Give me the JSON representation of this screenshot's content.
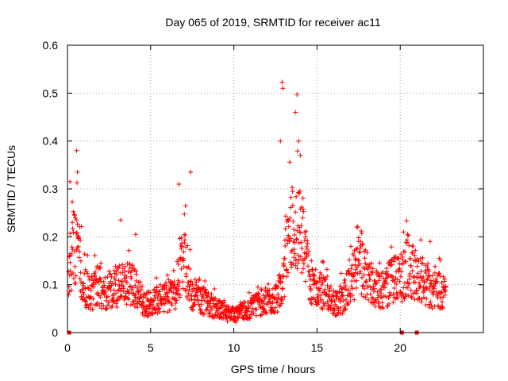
{
  "chart_data": {
    "type": "scatter",
    "title": "Day 065 of 2019, SRMTID for receiver ac11",
    "xlabel": "GPS time / hours",
    "ylabel": "SRMTID / TECUs",
    "xlim": [
      0,
      25
    ],
    "ylim": [
      0,
      0.6
    ],
    "x_ticks": [
      0,
      5,
      10,
      15,
      20
    ],
    "x_tick_labels": [
      "0",
      "5",
      "10",
      "15",
      "20"
    ],
    "y_ticks": [
      0,
      0.1,
      0.2,
      0.3,
      0.4,
      0.5,
      0.6
    ],
    "y_tick_labels": [
      "0",
      "0.1",
      "0.2",
      "0.3",
      "0.4",
      "0.5",
      "0.6"
    ],
    "grid": true,
    "marker": "plus",
    "color": "#ff0000",
    "profile_points": [
      [
        0.05,
        0.12
      ],
      [
        0.3,
        0.17
      ],
      [
        0.55,
        0.19
      ],
      [
        0.75,
        0.15
      ],
      [
        1.0,
        0.1
      ],
      [
        1.4,
        0.08
      ],
      [
        1.8,
        0.1
      ],
      [
        2.3,
        0.08
      ],
      [
        2.8,
        0.09
      ],
      [
        3.3,
        0.1
      ],
      [
        3.8,
        0.1
      ],
      [
        4.2,
        0.09
      ],
      [
        4.5,
        0.06
      ],
      [
        5.0,
        0.06
      ],
      [
        5.5,
        0.07
      ],
      [
        6.0,
        0.07
      ],
      [
        6.5,
        0.08
      ],
      [
        6.9,
        0.15
      ],
      [
        7.2,
        0.13
      ],
      [
        7.5,
        0.08
      ],
      [
        8.0,
        0.07
      ],
      [
        8.5,
        0.06
      ],
      [
        9.0,
        0.05
      ],
      [
        9.5,
        0.045
      ],
      [
        10.0,
        0.035
      ],
      [
        10.5,
        0.045
      ],
      [
        11.0,
        0.05
      ],
      [
        11.5,
        0.06
      ],
      [
        12.0,
        0.07
      ],
      [
        12.5,
        0.07
      ],
      [
        12.85,
        0.09
      ],
      [
        13.1,
        0.15
      ],
      [
        13.4,
        0.21
      ],
      [
        13.7,
        0.22
      ],
      [
        14.0,
        0.22
      ],
      [
        14.3,
        0.17
      ],
      [
        14.6,
        0.1
      ],
      [
        15.0,
        0.09
      ],
      [
        15.5,
        0.08
      ],
      [
        16.0,
        0.06
      ],
      [
        16.5,
        0.07
      ],
      [
        17.0,
        0.1
      ],
      [
        17.5,
        0.14
      ],
      [
        18.0,
        0.12
      ],
      [
        18.5,
        0.09
      ],
      [
        19.0,
        0.09
      ],
      [
        19.5,
        0.11
      ],
      [
        20.0,
        0.11
      ],
      [
        20.5,
        0.14
      ],
      [
        21.0,
        0.12
      ],
      [
        21.5,
        0.1
      ],
      [
        22.0,
        0.09
      ],
      [
        22.4,
        0.09
      ],
      [
        22.75,
        0.08
      ]
    ],
    "notable_points": [
      [
        0.15,
        0.315
      ],
      [
        0.55,
        0.38
      ],
      [
        0.6,
        0.335
      ],
      [
        6.7,
        0.31
      ],
      [
        7.1,
        0.265
      ],
      [
        7.4,
        0.335
      ],
      [
        12.9,
        0.523
      ],
      [
        12.95,
        0.51
      ],
      [
        12.8,
        0.4
      ],
      [
        13.7,
        0.46
      ],
      [
        13.8,
        0.497
      ],
      [
        13.9,
        0.4
      ],
      [
        14.0,
        0.37
      ],
      [
        17.4,
        0.22
      ],
      [
        20.2,
        0.21
      ],
      [
        21.8,
        0.19
      ],
      [
        3.2,
        0.235
      ],
      [
        4.1,
        0.205
      ]
    ],
    "zero_points": [
      0.1,
      20.1,
      21.0
    ]
  }
}
